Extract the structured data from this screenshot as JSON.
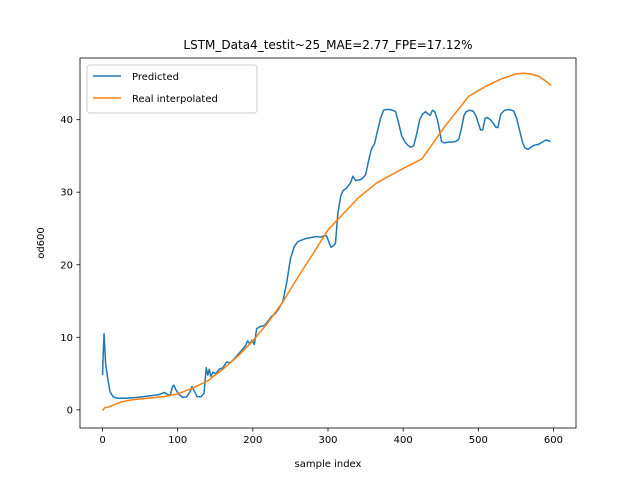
{
  "chart_data": {
    "type": "line",
    "title": "LSTM_Data4_testit~25_MAE=2.77_FPE=17.12%",
    "xlabel": "sample index",
    "ylabel": "od600",
    "xlim": [
      -30,
      630
    ],
    "ylim": [
      -2.5,
      48.5
    ],
    "xticks": [
      0,
      100,
      200,
      300,
      400,
      500,
      600
    ],
    "yticks": [
      0,
      10,
      20,
      30,
      40
    ],
    "grid": false,
    "legend_position": "upper-left",
    "series": [
      {
        "name": "Predicted",
        "color": "#1f77b4",
        "points": [
          [
            0,
            4.8
          ],
          [
            1,
            8
          ],
          [
            2,
            10.5
          ],
          [
            4,
            6.5
          ],
          [
            7,
            4.2
          ],
          [
            10,
            2.5
          ],
          [
            14,
            1.8
          ],
          [
            20,
            1.6
          ],
          [
            30,
            1.6
          ],
          [
            45,
            1.7
          ],
          [
            60,
            1.9
          ],
          [
            75,
            2.1
          ],
          [
            82,
            2.4
          ],
          [
            87,
            2.1
          ],
          [
            90,
            2.0
          ],
          [
            93,
            3.2
          ],
          [
            95,
            3.4
          ],
          [
            98,
            2.7
          ],
          [
            102,
            2.1
          ],
          [
            107,
            1.7
          ],
          [
            112,
            1.8
          ],
          [
            117,
            2.6
          ],
          [
            119,
            3.2
          ],
          [
            121,
            2.8
          ],
          [
            126,
            1.8
          ],
          [
            131,
            1.8
          ],
          [
            135,
            2.3
          ],
          [
            138,
            5.8
          ],
          [
            140,
            4.8
          ],
          [
            142,
            5.6
          ],
          [
            144,
            4.6
          ],
          [
            147,
            5.2
          ],
          [
            151,
            5.0
          ],
          [
            155,
            5.6
          ],
          [
            160,
            5.8
          ],
          [
            165,
            6.6
          ],
          [
            170,
            6.5
          ],
          [
            175,
            7.0
          ],
          [
            180,
            7.6
          ],
          [
            185,
            8.2
          ],
          [
            190,
            8.8
          ],
          [
            193,
            9.5
          ],
          [
            196,
            9.1
          ],
          [
            199,
            9.6
          ],
          [
            202,
            9.0
          ],
          [
            205,
            11.2
          ],
          [
            210,
            11.5
          ],
          [
            215,
            11.6
          ],
          [
            220,
            12.2
          ],
          [
            225,
            12.9
          ],
          [
            230,
            13.3
          ],
          [
            235,
            14.0
          ],
          [
            240,
            15.0
          ],
          [
            245,
            17.5
          ],
          [
            250,
            20.8
          ],
          [
            255,
            22.5
          ],
          [
            260,
            23.2
          ],
          [
            265,
            23.4
          ],
          [
            270,
            23.6
          ],
          [
            275,
            23.7
          ],
          [
            280,
            23.8
          ],
          [
            285,
            23.9
          ],
          [
            290,
            23.8
          ],
          [
            295,
            24.0
          ],
          [
            298,
            24.0
          ],
          [
            301,
            23.2
          ],
          [
            304,
            22.4
          ],
          [
            307,
            22.6
          ],
          [
            310,
            23.0
          ],
          [
            313,
            27.0
          ],
          [
            317,
            29.5
          ],
          [
            320,
            30.2
          ],
          [
            325,
            30.6
          ],
          [
            330,
            31.3
          ],
          [
            333,
            32.2
          ],
          [
            337,
            31.6
          ],
          [
            341,
            31.7
          ],
          [
            345,
            31.8
          ],
          [
            350,
            32.4
          ],
          [
            355,
            34.8
          ],
          [
            358,
            36.0
          ],
          [
            362,
            36.7
          ],
          [
            366,
            38.5
          ],
          [
            370,
            40.2
          ],
          [
            374,
            41.3
          ],
          [
            378,
            41.4
          ],
          [
            382,
            41.4
          ],
          [
            386,
            41.3
          ],
          [
            390,
            41.1
          ],
          [
            394,
            39.5
          ],
          [
            398,
            37.8
          ],
          [
            402,
            37.0
          ],
          [
            406,
            36.5
          ],
          [
            410,
            36.2
          ],
          [
            414,
            36.4
          ],
          [
            418,
            38.0
          ],
          [
            422,
            40.0
          ],
          [
            426,
            40.8
          ],
          [
            430,
            41.1
          ],
          [
            433,
            40.8
          ],
          [
            436,
            40.6
          ],
          [
            439,
            41.3
          ],
          [
            442,
            41.1
          ],
          [
            445,
            40.2
          ],
          [
            448,
            38.8
          ],
          [
            451,
            37.0
          ],
          [
            455,
            36.8
          ],
          [
            460,
            36.9
          ],
          [
            465,
            36.9
          ],
          [
            470,
            37.0
          ],
          [
            474,
            37.3
          ],
          [
            478,
            39.0
          ],
          [
            481,
            40.6
          ],
          [
            484,
            41.1
          ],
          [
            488,
            41.3
          ],
          [
            493,
            41.2
          ],
          [
            497,
            40.5
          ],
          [
            500,
            39.5
          ],
          [
            503,
            38.6
          ],
          [
            506,
            38.6
          ],
          [
            509,
            40.2
          ],
          [
            512,
            40.3
          ],
          [
            516,
            40.0
          ],
          [
            520,
            39.5
          ],
          [
            523,
            39.0
          ],
          [
            526,
            38.9
          ],
          [
            530,
            40.8
          ],
          [
            535,
            41.3
          ],
          [
            541,
            41.4
          ],
          [
            547,
            41.2
          ],
          [
            551,
            40.2
          ],
          [
            555,
            38.5
          ],
          [
            559,
            36.8
          ],
          [
            562,
            36.1
          ],
          [
            566,
            35.9
          ],
          [
            570,
            36.2
          ],
          [
            575,
            36.5
          ],
          [
            580,
            36.6
          ],
          [
            585,
            36.9
          ],
          [
            590,
            37.2
          ],
          [
            596,
            37.0
          ]
        ]
      },
      {
        "name": "Real interpolated",
        "color": "#ff7f0e",
        "points": [
          [
            0,
            -0.1
          ],
          [
            3,
            0.3
          ],
          [
            8,
            0.4
          ],
          [
            15,
            0.7
          ],
          [
            25,
            1.1
          ],
          [
            40,
            1.4
          ],
          [
            60,
            1.6
          ],
          [
            80,
            1.8
          ],
          [
            100,
            2.2
          ],
          [
            120,
            3.0
          ],
          [
            140,
            4.0
          ],
          [
            160,
            5.6
          ],
          [
            180,
            7.4
          ],
          [
            200,
            9.5
          ],
          [
            220,
            12.0
          ],
          [
            240,
            14.9
          ],
          [
            260,
            18.3
          ],
          [
            280,
            21.5
          ],
          [
            300,
            24.8
          ],
          [
            320,
            27.0
          ],
          [
            340,
            29.2
          ],
          [
            365,
            31.3
          ],
          [
            395,
            33.0
          ],
          [
            425,
            34.6
          ],
          [
            455,
            39.0
          ],
          [
            487,
            43.2
          ],
          [
            510,
            44.6
          ],
          [
            530,
            45.6
          ],
          [
            550,
            46.3
          ],
          [
            560,
            46.4
          ],
          [
            570,
            46.3
          ],
          [
            580,
            46.0
          ],
          [
            590,
            45.3
          ],
          [
            597,
            44.7
          ]
        ]
      }
    ]
  }
}
